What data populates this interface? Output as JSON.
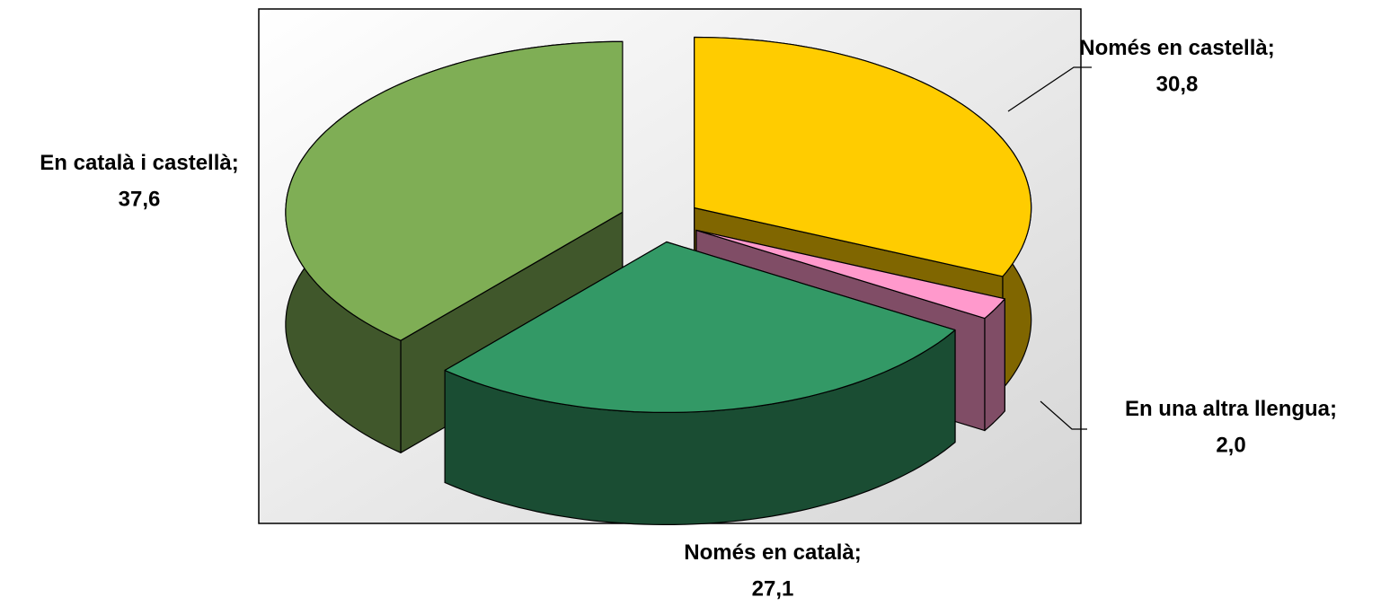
{
  "chart_data": {
    "type": "pie3d",
    "categories": [
      "Només en castellà",
      "En una altra llengua",
      "Només en català",
      "En català i castellà"
    ],
    "values": [
      30.8,
      2.0,
      27.1,
      37.6
    ],
    "value_labels": [
      "30,8",
      "2,0",
      "27,1",
      "37,6"
    ],
    "label_separator": ";",
    "colors": [
      "#ffcc00",
      "#ff99cc",
      "#339966",
      "#7fae55"
    ]
  }
}
